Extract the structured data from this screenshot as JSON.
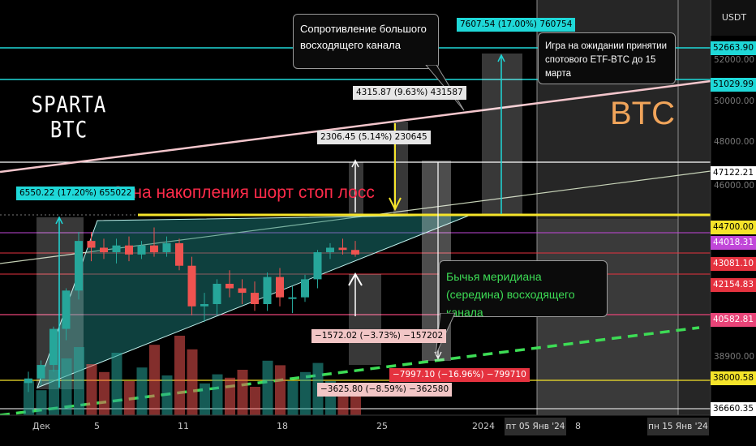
{
  "currency": "USDT",
  "price_axis": {
    "ticks": [
      "52000.00",
      "50000.00",
      "48000.00",
      "46000.00",
      "38900.00"
    ],
    "tags": [
      {
        "value": "52663.90",
        "bg": "#1fd8d8",
        "fg": "#000"
      },
      {
        "value": "51029.99",
        "bg": "#1fd8d8",
        "fg": "#000"
      },
      {
        "value": "47122.21",
        "bg": "#ffffff",
        "fg": "#000"
      },
      {
        "value": "44700.00",
        "bg": "#f5e42a",
        "fg": "#000"
      },
      {
        "value": "44018.31",
        "bg": "#c147d9",
        "fg": "#fff"
      },
      {
        "value": "43081.10",
        "bg": "#e5323f",
        "fg": "#fff"
      },
      {
        "value": "42154.83",
        "bg": "#e5323f",
        "fg": "#fff"
      },
      {
        "value": "40582.81",
        "bg": "#e84478",
        "fg": "#fff"
      },
      {
        "value": "38000.58",
        "bg": "#f5e42a",
        "fg": "#000"
      },
      {
        "value": "36660.35",
        "bg": "#ffffff",
        "fg": "#000"
      }
    ]
  },
  "time_axis": {
    "ticks": [
      "Дек",
      "5",
      "11",
      "18",
      "25",
      "2024",
      "8"
    ],
    "date_boxes": [
      "пт 05 Янв '24",
      "пн 15 Янв '24"
    ]
  },
  "logo": {
    "line1": "SPARTA",
    "line2": "BTC"
  },
  "symbol": "BTC",
  "annotations": {
    "resistance": "Сопротивление большого восходящего канала",
    "etf": "Игра на ожидании принятии спотового ETF-BTC до 15 марта",
    "zone": "Зона накопления шорт стоп лосс",
    "meridian": "Бычья меридиана (середина) восходящего канала"
  },
  "measure_labels": {
    "m1": "7607.54 (17.00%) 760754",
    "m2": "4315.87 (9.63%) 431587",
    "m3": "2306.45 (5.14%) 230645",
    "m4": "6550.22 (17.20%) 655022",
    "m5": "−1572.02 (−3.73%) −157202",
    "m6": "−7997.10 (−16.96%) −799710",
    "m7": "−3625.80 (−8.59%) −362580"
  },
  "colors": {
    "bull": "#26a69a",
    "bear": "#ef5350",
    "zone": "#f5e42a",
    "meridian": "#3ddc55",
    "resistance": "#f4c6cc",
    "cyan": "#1fd8d8"
  },
  "chart_data": {
    "type": "candlestick",
    "candles": [
      {
        "o": 37800,
        "h": 38300,
        "l": 37400,
        "c": 38000
      },
      {
        "o": 38000,
        "h": 38800,
        "l": 37700,
        "c": 38600
      },
      {
        "o": 38600,
        "h": 40300,
        "l": 38300,
        "c": 40200
      },
      {
        "o": 40200,
        "h": 42000,
        "l": 39700,
        "c": 41900
      },
      {
        "o": 41900,
        "h": 44500,
        "l": 41500,
        "c": 44100
      },
      {
        "o": 44100,
        "h": 44500,
        "l": 43200,
        "c": 43800
      },
      {
        "o": 43800,
        "h": 44200,
        "l": 43300,
        "c": 43600
      },
      {
        "o": 43600,
        "h": 44200,
        "l": 43100,
        "c": 43900
      },
      {
        "o": 43900,
        "h": 44300,
        "l": 43200,
        "c": 43500
      },
      {
        "o": 43500,
        "h": 44100,
        "l": 43300,
        "c": 43900
      },
      {
        "o": 43900,
        "h": 44700,
        "l": 43400,
        "c": 43600
      },
      {
        "o": 43600,
        "h": 44300,
        "l": 43400,
        "c": 44000
      },
      {
        "o": 44000,
        "h": 44200,
        "l": 42800,
        "c": 43000
      },
      {
        "o": 43000,
        "h": 43400,
        "l": 40800,
        "c": 41200
      },
      {
        "o": 41200,
        "h": 41800,
        "l": 40500,
        "c": 41300
      },
      {
        "o": 41300,
        "h": 42400,
        "l": 40800,
        "c": 42200
      },
      {
        "o": 42200,
        "h": 42800,
        "l": 41600,
        "c": 42000
      },
      {
        "o": 42000,
        "h": 42400,
        "l": 41300,
        "c": 41800
      },
      {
        "o": 41800,
        "h": 42300,
        "l": 41000,
        "c": 41300
      },
      {
        "o": 41300,
        "h": 42700,
        "l": 41000,
        "c": 42500
      },
      {
        "o": 42500,
        "h": 42900,
        "l": 41200,
        "c": 41600
      },
      {
        "o": 41600,
        "h": 42100,
        "l": 40900,
        "c": 41600
      },
      {
        "o": 41600,
        "h": 42600,
        "l": 41400,
        "c": 42400
      },
      {
        "o": 42400,
        "h": 43700,
        "l": 42000,
        "c": 43600
      },
      {
        "o": 43600,
        "h": 44000,
        "l": 43300,
        "c": 43800
      },
      {
        "o": 43800,
        "h": 44200,
        "l": 43500,
        "c": 43700
      },
      {
        "o": 43700,
        "h": 44100,
        "l": 43400,
        "c": 43500
      }
    ],
    "volumes": [
      30,
      22,
      40,
      50,
      60,
      45,
      38,
      55,
      30,
      42,
      62,
      35,
      70,
      58,
      28,
      36,
      33,
      40,
      25,
      48,
      44,
      30,
      38,
      46,
      30,
      28,
      24
    ]
  }
}
